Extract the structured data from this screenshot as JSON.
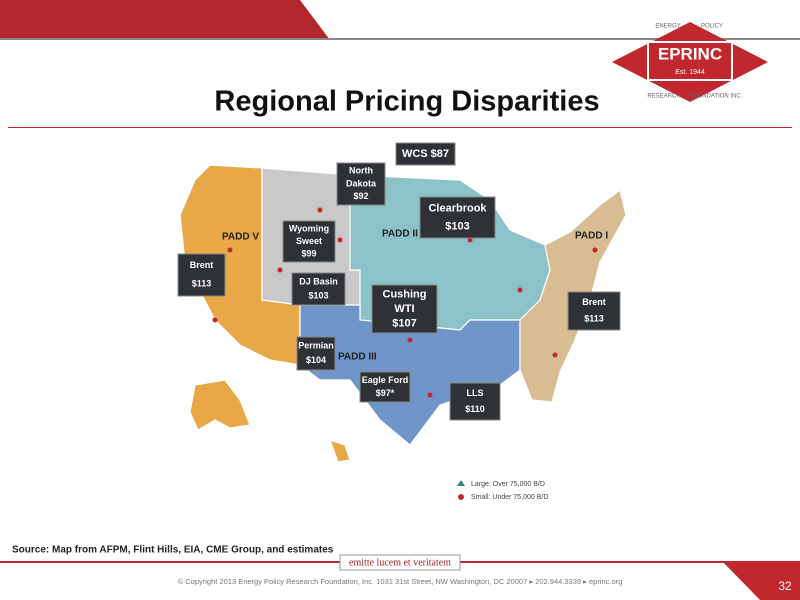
{
  "header": {
    "title": "Regional Pricing Disparities",
    "logo": {
      "name": "EPRINC",
      "established": "Est. 1944",
      "arc_top": [
        "ENERGY",
        "POLICY"
      ],
      "arc_bottom": [
        "RESEARCH",
        "FOUNDATION INC."
      ]
    }
  },
  "map": {
    "regions": [
      "PADD V",
      "PADD II",
      "PADD I",
      "PADD III"
    ],
    "prices": [
      {
        "lines": [
          "WCS $87"
        ]
      },
      {
        "lines": [
          "North",
          "Dakota",
          "$92"
        ]
      },
      {
        "lines": [
          "Clearbrook",
          "$103"
        ]
      },
      {
        "lines": [
          "Wyoming",
          "Sweet",
          "$99"
        ]
      },
      {
        "lines": [
          "Brent",
          "$113"
        ]
      },
      {
        "lines": [
          "DJ Basin",
          "$103"
        ]
      },
      {
        "lines": [
          "Cushing",
          "WTI",
          "$107"
        ]
      },
      {
        "lines": [
          "Brent",
          "$113"
        ]
      },
      {
        "lines": [
          "Permian",
          "$104"
        ]
      },
      {
        "lines": [
          "Eagle Ford",
          "$97*"
        ]
      },
      {
        "lines": [
          "LLS",
          "$110"
        ]
      }
    ],
    "legend": [
      "Large: Over 75,000 B/D",
      "Small: Under 75,000 B/D"
    ]
  },
  "footer": {
    "source": "Source: Map from AFPM, Flint Hills, EIA, CME Group, and estimates",
    "motto": "emitte lucem et veritatem",
    "copyright": "© Copyright 2013 Energy Policy Research Foundation, Inc. 1031 31st Street, NW Washington, DC 20007 ▸ 202.944.3339 ▸ eprinc.org",
    "page": "32"
  }
}
